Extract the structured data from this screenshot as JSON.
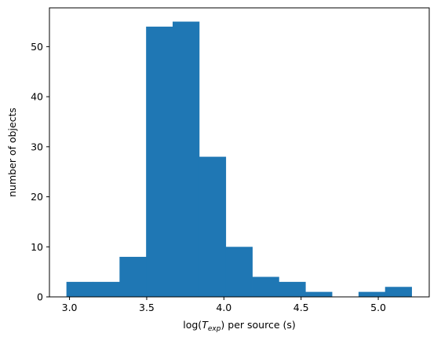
{
  "chart_data": {
    "type": "bar",
    "title": "",
    "xlabel": {
      "prefix": "log(",
      "symbol": "T",
      "subscript": "exp",
      "suffix": ") per source (s)"
    },
    "ylabel": "number of objects",
    "xlim": [
      2.87,
      5.33
    ],
    "ylim": [
      0,
      57.75
    ],
    "xticks": [
      3.0,
      3.5,
      4.0,
      4.5,
      5.0
    ],
    "xtick_labels": [
      "3.0",
      "3.5",
      "4.0",
      "4.5",
      "5.0"
    ],
    "yticks": [
      0,
      10,
      20,
      30,
      40,
      50
    ],
    "ytick_labels": [
      "0",
      "10",
      "20",
      "30",
      "40",
      "50"
    ],
    "bin_edges": [
      2.98,
      3.152,
      3.324,
      3.496,
      3.668,
      3.84,
      4.012,
      4.184,
      4.356,
      4.528,
      4.7,
      4.872,
      5.044,
      5.216
    ],
    "counts": [
      3,
      3,
      8,
      54,
      55,
      28,
      10,
      4,
      3,
      1,
      0,
      1,
      2
    ],
    "grid": false,
    "legend": "none",
    "colors": {
      "bar": "#1f77b4",
      "axis": "#000000",
      "background": "#ffffff"
    }
  }
}
